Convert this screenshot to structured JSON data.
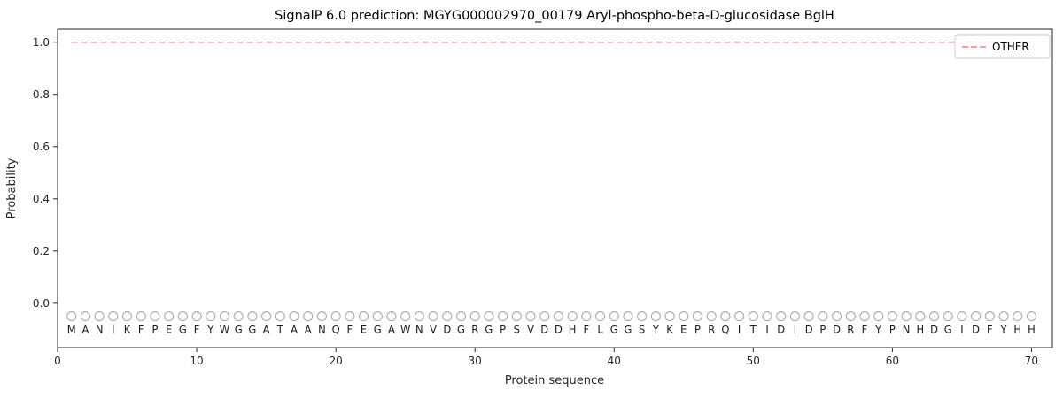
{
  "figure": {
    "title": "SignalP 6.0 prediction: MGYG000002970_00179 Aryl-phospho-beta-D-glucosidase BglH"
  },
  "chart_data": {
    "type": "line",
    "title": "SignalP 6.0 prediction: MGYG000002970_00179 Aryl-phospho-beta-D-glucosidase BglH",
    "xlabel": "Protein sequence",
    "ylabel": "Probability",
    "xlim": [
      0,
      71.5
    ],
    "ylim": [
      -0.17,
      1.05
    ],
    "xticks": [
      0,
      10,
      20,
      30,
      40,
      50,
      60,
      70
    ],
    "yticks": [
      0,
      0.2,
      0.4,
      0.6,
      0.8,
      1.0
    ],
    "grid": false,
    "legend": {
      "position": "upper right",
      "entries": [
        "OTHER"
      ]
    },
    "series": [
      {
        "name": "OTHER",
        "style": "dashed",
        "color": "#f08080",
        "x_start": 1,
        "x_end": 70,
        "constant_value": 1.0
      }
    ],
    "sequence": "MANIKFPEGFYWGGATAANQFEGAWNVDGRGPSVDDHFLGGSYKEPRQITIDIDPDRFYPNHDGIDFYHH",
    "sequence_marker": {
      "symbol": "open-circle",
      "y": -0.05,
      "color": "#ababab"
    },
    "axis_color": "#262626"
  }
}
